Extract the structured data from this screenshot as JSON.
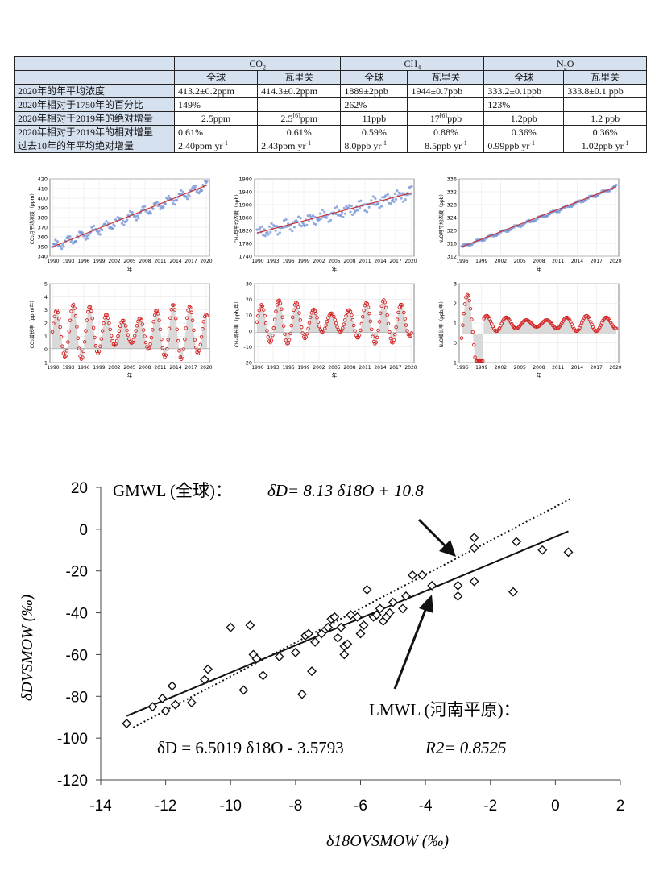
{
  "table": {
    "gases": [
      "CO",
      "CH",
      "N",
      "O"
    ],
    "gas_subscripts": [
      "2",
      "4",
      "2"
    ],
    "sub_headers": [
      "全球",
      "瓦里关",
      "全球",
      "瓦里关",
      "全球",
      "瓦里关"
    ],
    "rows": [
      {
        "label": "2020年的年平均浓度",
        "cells": [
          "413.2±0.2ppm",
          "414.3±0.2ppm",
          "1889±2ppb",
          "1944±0.7ppb",
          "333.2±0.1ppb",
          "333.8±0.1 ppb"
        ]
      },
      {
        "label": "2020年相对于1750年的百分比",
        "cells": [
          "149%",
          "",
          "262%",
          "",
          "123%",
          ""
        ]
      },
      {
        "label": "2020年相对于2019年的绝对增量",
        "cells": [
          "2.5ppm",
          "2.5",
          "11ppb",
          "17",
          "1.2ppb",
          "1.2 ppb"
        ],
        "sup_marks": [
          "",
          "[6]",
          "",
          "[6]",
          "",
          ""
        ],
        "sup_tails": [
          "",
          "ppm",
          "",
          "ppb",
          "",
          ""
        ]
      },
      {
        "label": "2020年相对于2019年的相对增量",
        "cells": [
          "0.61%",
          "0.61%",
          "0.59%",
          "0.88%",
          "0.36%",
          "0.36%"
        ]
      },
      {
        "label": "过去10年的年平均绝对增量",
        "cells": [
          "2.40ppm yr",
          "2.43ppm yr",
          "8.0ppb yr",
          "8.5ppb yr",
          "0.99ppb yr",
          "1.02ppb yr"
        ],
        "unit_exp": "-1"
      }
    ]
  },
  "mini_charts": {
    "xlabel": "年",
    "panels": [
      {
        "ylabel": "CO₂月平均浓度（ppm）",
        "yticks": [
          "340",
          "350",
          "360",
          "370",
          "380",
          "390",
          "400",
          "410",
          "420"
        ],
        "xticks": [
          "1990",
          "1993",
          "1996",
          "1999",
          "2002",
          "2005",
          "2008",
          "2011",
          "2014",
          "2017",
          "2020"
        ]
      },
      {
        "ylabel": "CH₄月平均浓度（ppb）",
        "yticks": [
          "1740",
          "1780",
          "1820",
          "1860",
          "1900",
          "1940",
          "1980"
        ],
        "xticks": [
          "1990",
          "1993",
          "1996",
          "1999",
          "2002",
          "2005",
          "2008",
          "2011",
          "2014",
          "2017",
          "2020"
        ]
      },
      {
        "ylabel": "N₂O月平均浓度（ppb）",
        "yticks": [
          "312",
          "316",
          "320",
          "324",
          "328",
          "332",
          "336"
        ],
        "xticks": [
          "1996",
          "1999",
          "2002",
          "2005",
          "2008",
          "2011",
          "2014",
          "2017",
          "2020"
        ]
      },
      {
        "ylabel": "CO₂增长率（ppm/年）",
        "yticks": [
          "-1",
          "0",
          "1",
          "2",
          "3",
          "4",
          "5"
        ],
        "xticks": [
          "1990",
          "1993",
          "1996",
          "1999",
          "2002",
          "2005",
          "2008",
          "2011",
          "2014",
          "2017",
          "2020"
        ]
      },
      {
        "ylabel": "CH₄增长率（ppb/年）",
        "yticks": [
          "-20",
          "-10",
          "0",
          "10",
          "20",
          "30"
        ],
        "xticks": [
          "1990",
          "1993",
          "1996",
          "1999",
          "2002",
          "2005",
          "2008",
          "2011",
          "2014",
          "2017",
          "2020"
        ]
      },
      {
        "ylabel": "N₂O增长率（ppb/年）",
        "yticks": [
          "-1",
          "0",
          "1",
          "2",
          "3"
        ],
        "xticks": [
          "1996",
          "1999",
          "2002",
          "2005",
          "2008",
          "2011",
          "2014",
          "2017",
          "2020"
        ]
      }
    ]
  },
  "chart_data": {
    "type": "scatter",
    "xlabel": "δ18OVSMOW (‰)",
    "ylabel": "δDVSMOW (‰)",
    "xlim": [
      -14,
      2
    ],
    "ylim": [
      -120,
      20
    ],
    "xticks": [
      "-14",
      "-12",
      "-10",
      "-8",
      "-6",
      "-4",
      "-2",
      "0",
      "2"
    ],
    "yticks": [
      "-120",
      "-100",
      "-80",
      "-60",
      "-40",
      "-20",
      "0",
      "20"
    ],
    "gmwl": {
      "label": "GMWL (全球)：",
      "equation": "δD= 8.13 δ18O + 10.8",
      "slope": 8.13,
      "intercept": 10.8,
      "x_range": [
        -13,
        0.5
      ]
    },
    "lmwl": {
      "label": "LMWL (河南平原)：",
      "equation": "δD = 6.5019 δ18O - 3.5793",
      "r2": "R2= 0.8525",
      "slope": 6.5019,
      "intercept": -3.5793,
      "x_range": [
        -13.2,
        0.4
      ]
    },
    "points": [
      [
        -13.2,
        -93
      ],
      [
        -12.4,
        -85
      ],
      [
        -12.1,
        -81
      ],
      [
        -12.0,
        -87
      ],
      [
        -11.8,
        -75
      ],
      [
        -11.7,
        -84
      ],
      [
        -11.2,
        -83
      ],
      [
        -10.8,
        -72
      ],
      [
        -10.7,
        -67
      ],
      [
        -10.0,
        -47
      ],
      [
        -9.6,
        -77
      ],
      [
        -9.4,
        -46
      ],
      [
        -9.3,
        -60
      ],
      [
        -9.2,
        -62
      ],
      [
        -9.0,
        -70
      ],
      [
        -8.5,
        -61
      ],
      [
        -8.0,
        -59
      ],
      [
        -7.8,
        -79
      ],
      [
        -7.7,
        -51
      ],
      [
        -7.6,
        -50
      ],
      [
        -7.5,
        -68
      ],
      [
        -7.4,
        -54
      ],
      [
        -7.2,
        -50
      ],
      [
        -7.0,
        -47
      ],
      [
        -6.9,
        -43
      ],
      [
        -6.8,
        -42
      ],
      [
        -6.7,
        -52
      ],
      [
        -6.6,
        -47
      ],
      [
        -6.5,
        -56
      ],
      [
        -6.5,
        -60
      ],
      [
        -6.4,
        -55
      ],
      [
        -6.3,
        -41
      ],
      [
        -6.1,
        -42
      ],
      [
        -6.0,
        -50
      ],
      [
        -5.9,
        -46
      ],
      [
        -5.8,
        -29
      ],
      [
        -5.6,
        -42
      ],
      [
        -5.5,
        -41
      ],
      [
        -5.4,
        -38
      ],
      [
        -5.3,
        -44
      ],
      [
        -5.2,
        -42
      ],
      [
        -5.1,
        -40
      ],
      [
        -5.0,
        -35
      ],
      [
        -4.7,
        -38
      ],
      [
        -4.6,
        -32
      ],
      [
        -4.4,
        -22
      ],
      [
        -4.1,
        -22
      ],
      [
        -3.8,
        -27
      ],
      [
        -3.0,
        -27
      ],
      [
        -3.0,
        -32
      ],
      [
        -2.5,
        -4
      ],
      [
        -2.5,
        -9
      ],
      [
        -2.5,
        -25
      ],
      [
        -1.2,
        -6
      ],
      [
        -1.3,
        -30
      ],
      [
        -0.4,
        -10
      ],
      [
        0.4,
        -11
      ]
    ],
    "grid": false
  },
  "colors": {
    "table_header_bg": "#d6e1f0",
    "mini_points": "#6f8fd4",
    "mini_fit": "#cc2a2a",
    "growth": "#d42020",
    "growth_fill": "#d9d9d9",
    "main_line": "#111111"
  }
}
